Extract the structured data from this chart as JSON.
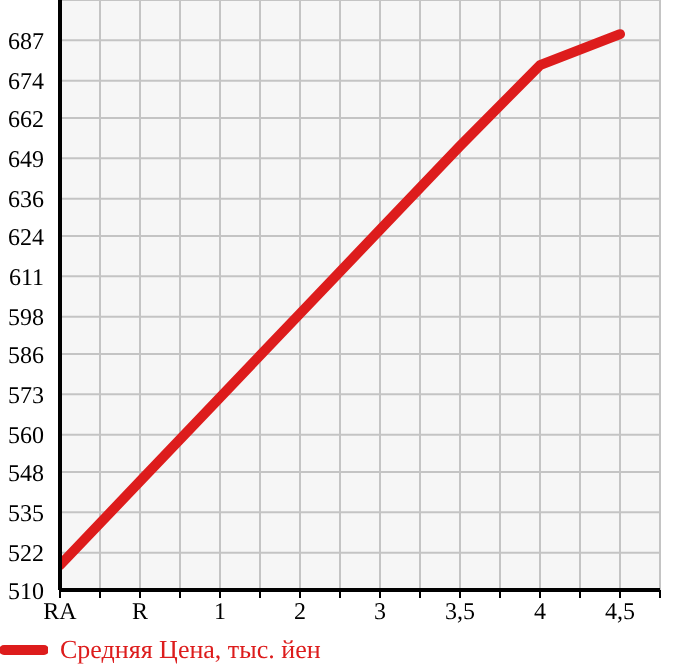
{
  "chart_data": {
    "type": "line",
    "categories": [
      "RA",
      "R",
      "1",
      "2",
      "3",
      "3,5",
      "4",
      "4,5"
    ],
    "series": [
      {
        "name": "Средняя Цена, тыс. йен",
        "color": "#dd1c1c",
        "values": [
          518,
          545,
          572,
          599,
          626,
          653,
          679,
          689
        ]
      }
    ],
    "ylim": [
      510,
      700
    ],
    "yticks": [
      510,
      522,
      535,
      548,
      560,
      573,
      586,
      598,
      611,
      624,
      636,
      649,
      662,
      674,
      687
    ],
    "grid": true,
    "legend": "bottom",
    "marker": "none",
    "line_style": "solid"
  }
}
